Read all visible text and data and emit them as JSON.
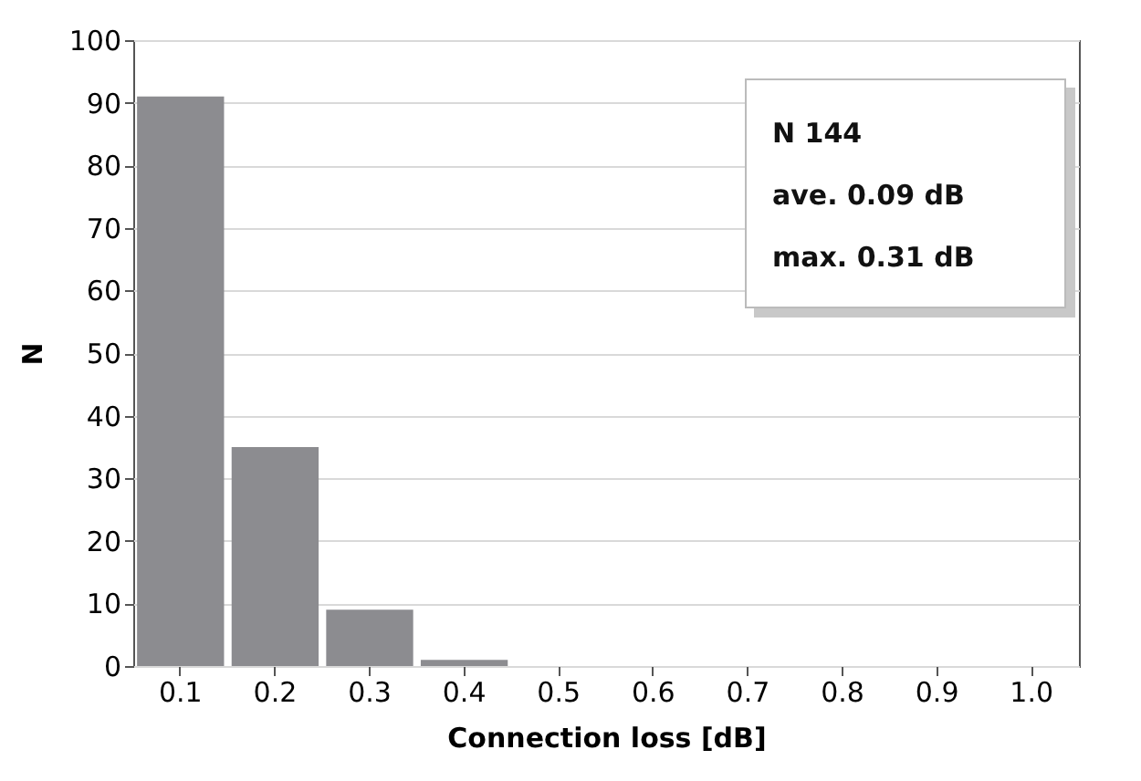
{
  "chart_data": {
    "type": "bar",
    "categories": [
      "0.1",
      "0.2",
      "0.3",
      "0.4",
      "0.5",
      "0.6",
      "0.7",
      "0.8",
      "0.9",
      "1.0"
    ],
    "values": [
      91,
      35,
      9,
      1,
      0,
      0,
      0,
      0,
      0,
      0
    ],
    "color": "#8c8c90",
    "xlabel": "Connection loss [dB]",
    "ylabel": "N",
    "ylim": [
      0,
      100
    ],
    "yticks": [
      0,
      10,
      20,
      30,
      40,
      50,
      60,
      70,
      80,
      90,
      100
    ],
    "grid": "y",
    "annotations": [
      "N 144",
      "ave. 0.09 dB",
      "max. 0.31 dB"
    ]
  }
}
